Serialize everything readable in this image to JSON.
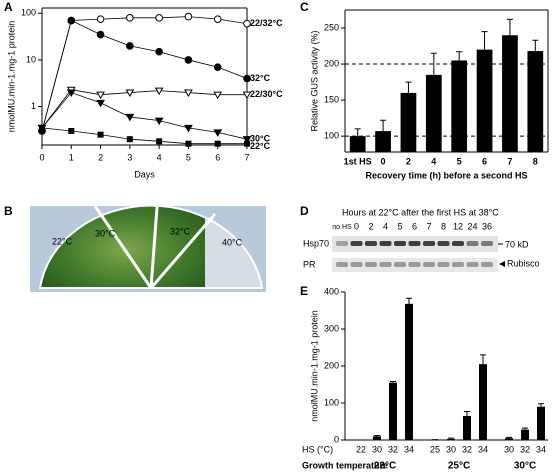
{
  "panel_labels": [
    "A",
    "B",
    "C",
    "D",
    "E"
  ],
  "chart_data": [
    {
      "type": "line",
      "log_y": true,
      "ylabel": "nmolMU.min-1.mg-1 protein",
      "xlabel": "Days",
      "x": [
        0,
        1,
        2,
        3,
        4,
        5,
        6,
        7
      ],
      "xlim": [
        0,
        7
      ],
      "xticks": [
        0,
        1,
        2,
        3,
        4,
        5,
        6,
        7
      ],
      "ylim": [
        0.15,
        130
      ],
      "yticks": [
        1,
        10,
        100
      ],
      "series": [
        {
          "name": "22/32°C",
          "marker": "circle-open",
          "color": "#000000",
          "values": [
            0.3,
            70,
            75,
            80,
            80,
            85,
            75,
            60
          ]
        },
        {
          "name": "32°C",
          "marker": "circle",
          "color": "#000000",
          "values": [
            0.3,
            70,
            35,
            20,
            15,
            10,
            7,
            4
          ]
        },
        {
          "name": "22/30°C",
          "marker": "triangle-open",
          "color": "#000000",
          "values": [
            0.35,
            2.3,
            1.8,
            2,
            2.2,
            2,
            1.8,
            1.8
          ]
        },
        {
          "name": "30°C",
          "marker": "triangle",
          "color": "#000000",
          "values": [
            0.35,
            2,
            1.2,
            0.6,
            0.5,
            0.35,
            0.28,
            0.2
          ]
        },
        {
          "name": "22°C",
          "marker": "square",
          "color": "#000000",
          "values": [
            0.35,
            0.3,
            0.25,
            0.2,
            0.18,
            0.16,
            0.16,
            0.16
          ]
        }
      ]
    },
    {
      "type": "bar",
      "ylabel": "Relative GUS activity (%)",
      "xlabel": "Recovery time (h) before a second HS",
      "categories": [
        "1st HS",
        "0",
        "2",
        "4",
        "5",
        "6",
        "7",
        "8"
      ],
      "values": [
        100,
        107,
        160,
        185,
        205,
        220,
        240,
        218
      ],
      "errors": [
        10,
        15,
        15,
        30,
        12,
        25,
        22,
        15
      ],
      "color": "#000000",
      "ylim": [
        78,
        275
      ],
      "yticks": [
        100,
        150,
        200,
        250
      ],
      "reference_lines": [
        100,
        200
      ]
    },
    {
      "type": "grouped_bar",
      "ylabel": "nmolMU.min-1.mg-1 protein",
      "xlabel": "HS (°C)",
      "group_label": "Growth temperature",
      "color": "#000000",
      "ylim": [
        0,
        400
      ],
      "yticks": [
        0,
        100,
        200,
        300,
        400
      ],
      "groups": [
        {
          "name": "22°C",
          "categories": [
            "22",
            "30",
            "32",
            "34"
          ],
          "values": [
            0,
            10,
            155,
            368
          ],
          "errors": [
            0,
            2,
            3,
            15
          ]
        },
        {
          "name": "25°C",
          "categories": [
            "25",
            "30",
            "32",
            "34"
          ],
          "values": [
            1,
            3,
            65,
            205
          ],
          "errors": [
            0,
            2,
            12,
            25
          ]
        },
        {
          "name": "30°C",
          "categories": [
            "30",
            "32",
            "34"
          ],
          "values": [
            5,
            28,
            90
          ],
          "errors": [
            2,
            4,
            8
          ]
        }
      ]
    }
  ],
  "panel_b": {
    "labels": [
      "22°C",
      "30°C",
      "32°C",
      "40°C"
    ]
  },
  "panel_d": {
    "header": "Hours at 22°C after the first HS at 38°C",
    "lanes": [
      "no HS",
      "0",
      "2",
      "4",
      "5",
      "6",
      "7",
      "8",
      "12",
      "24",
      "36"
    ],
    "rows": [
      "Hsp70",
      "PR"
    ],
    "marker_labels": [
      "70 kD",
      "Rubisco"
    ]
  }
}
